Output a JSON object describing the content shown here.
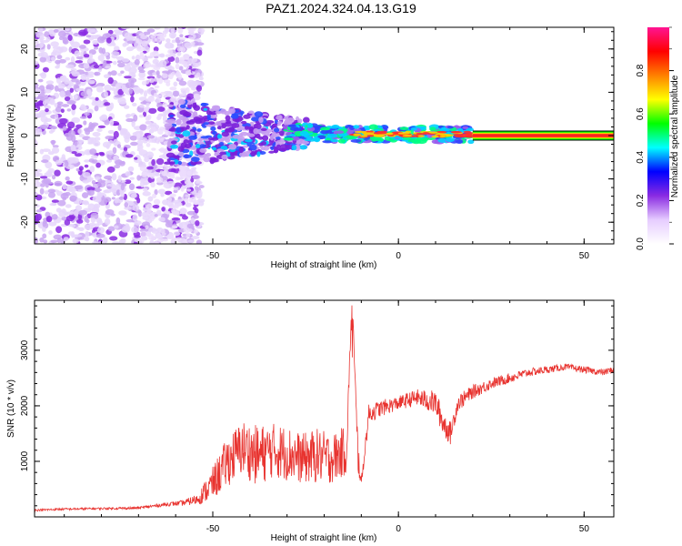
{
  "title": "PAZ1.2024.324.04.13.G19",
  "chart_data": [
    {
      "type": "heatmap",
      "xlabel": "Height of straight line (km)",
      "ylabel": "Frequency (Hz)",
      "xlim": [
        -98,
        58
      ],
      "ylim": [
        -25,
        25
      ],
      "xticks": [
        "-50",
        "0",
        "50"
      ],
      "yticks": [
        "-20",
        "-10",
        "0",
        "10",
        "20"
      ],
      "colorbar": {
        "label": "Normalized spectral amplitude",
        "range": [
          0,
          1
        ],
        "ticks": [
          "0.0",
          "0.2",
          "0.4",
          "0.6",
          "0.8"
        ],
        "colors": [
          "#ffffff",
          "#e6ccff",
          "#8a2be2",
          "#0000ff",
          "#00ffff",
          "#00ff00",
          "#ffff00",
          "#ff8000",
          "#ff0000",
          "#ff1493"
        ]
      },
      "ridge": {
        "description_free": true,
        "points": [
          {
            "x": -53,
            "f": 5.5,
            "amp": 0.3
          },
          {
            "x": -45,
            "f": 3.0,
            "amp": 0.25
          },
          {
            "x": -40,
            "f": 0.0,
            "amp": 0.25
          },
          {
            "x": -35,
            "f": -4.5,
            "amp": 0.25
          },
          {
            "x": -30,
            "f": 1.5,
            "amp": 0.45
          },
          {
            "x": -20,
            "f": 0.0,
            "amp": 0.5
          },
          {
            "x": -10,
            "f": 0.2,
            "amp": 0.75
          },
          {
            "x": 0,
            "f": 0.3,
            "amp": 0.75
          },
          {
            "x": 10,
            "f": 0.4,
            "amp": 0.75
          },
          {
            "x": 20,
            "f": 0.0,
            "amp": 0.8
          },
          {
            "x": 58,
            "f": 0.0,
            "amp": 0.85
          }
        ]
      }
    },
    {
      "type": "line",
      "xlabel": "Height of straight line (km)",
      "ylabel": "SNR (10 * v/v)",
      "xlim": [
        -98,
        58
      ],
      "ylim": [
        0,
        3900
      ],
      "xticks": [
        "-50",
        "0",
        "50"
      ],
      "yticks": [
        "1000",
        "2000",
        "3000"
      ],
      "color": "#e8332f",
      "series": [
        {
          "x": [
            -98,
            -90,
            -80,
            -70,
            -62,
            -58,
            -54,
            -50,
            -46,
            -42,
            -38,
            -34,
            -30,
            -26,
            -22,
            -18,
            -14,
            -12.5,
            -11,
            -10,
            -8,
            -5,
            0,
            5,
            10,
            12,
            14,
            16,
            20,
            25,
            30,
            35,
            40,
            45,
            50,
            55,
            58
          ],
          "y": [
            120,
            140,
            150,
            160,
            230,
            250,
            320,
            600,
            1000,
            1250,
            1100,
            1200,
            1150,
            1050,
            1100,
            1050,
            1200,
            3900,
            1200,
            600,
            1850,
            1950,
            2050,
            2150,
            2050,
            1700,
            1500,
            2050,
            2250,
            2400,
            2500,
            2600,
            2650,
            2700,
            2650,
            2600,
            2650
          ],
          "noise": [
            40,
            40,
            40,
            50,
            70,
            100,
            200,
            600,
            900,
            1000,
            1100,
            1000,
            1000,
            900,
            1000,
            900,
            900,
            0,
            800,
            200,
            350,
            300,
            250,
            300,
            450,
            500,
            400,
            300,
            250,
            200,
            180,
            150,
            130,
            120,
            120,
            120,
            120
          ]
        }
      ]
    }
  ]
}
